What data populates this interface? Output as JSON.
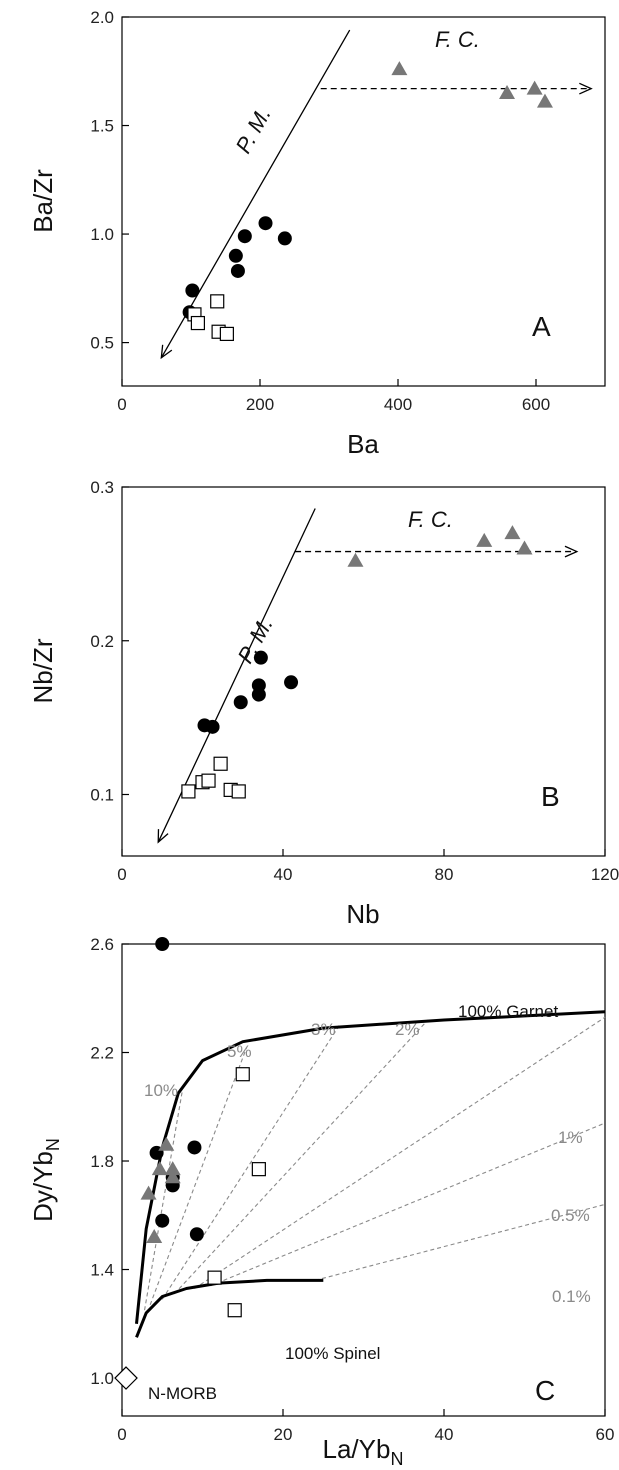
{
  "chart_data": [
    {
      "type": "scatter",
      "panel_label": "A",
      "xlabel": "Ba",
      "ylabel": "Ba/Zr",
      "xlim": [
        0,
        700
      ],
      "ylim": [
        0.3,
        2.0
      ],
      "xticks": [
        "0",
        "200",
        "400",
        "600"
      ],
      "xtick_values": [
        0,
        200,
        400,
        600
      ],
      "yticks": [
        "0.5",
        "1.0",
        "1.5",
        "2.0"
      ],
      "ytick_values": [
        0.5,
        1.0,
        1.5,
        2.0
      ],
      "grid": false,
      "series": [
        {
          "marker": "circle",
          "color": "#000000",
          "points": [
            [
              102,
              0.74
            ],
            [
              98,
              0.64
            ],
            [
              165,
              0.9
            ],
            [
              168,
              0.83
            ],
            [
              178,
              0.99
            ],
            [
              208,
              1.05
            ],
            [
              236,
              0.98
            ]
          ]
        },
        {
          "marker": "square",
          "color": "#ffffff",
          "points": [
            [
              105,
              0.63
            ],
            [
              110,
              0.59
            ],
            [
              138,
              0.69
            ],
            [
              140,
              0.55
            ],
            [
              152,
              0.54
            ]
          ]
        },
        {
          "marker": "triangle",
          "color": "#777777",
          "points": [
            [
              402,
              1.76
            ],
            [
              558,
              1.65
            ],
            [
              598,
              1.67
            ],
            [
              613,
              1.61
            ]
          ]
        }
      ],
      "annotations": [
        {
          "text": "P. M.",
          "kind": "solid-arrow-line",
          "from": [
            330,
            1.94
          ],
          "to": [
            57,
            0.43
          ],
          "label_at": [
            222,
            1.49
          ]
        },
        {
          "text": "F. C.",
          "kind": "dashed-arrow-line",
          "from": [
            288,
            1.67
          ],
          "to": [
            680,
            1.67
          ],
          "label_at": [
            440,
            1.75
          ]
        }
      ]
    },
    {
      "type": "scatter",
      "panel_label": "B",
      "xlabel": "Nb",
      "ylabel": "Nb/Zr",
      "xlim": [
        0,
        120
      ],
      "ylim": [
        0.06,
        0.3
      ],
      "xticks": [
        "0",
        "40",
        "80",
        "120"
      ],
      "xtick_values": [
        0,
        40,
        80,
        120
      ],
      "yticks": [
        "0.1",
        "0.2",
        "0.3"
      ],
      "ytick_values": [
        0.1,
        0.2,
        0.3
      ],
      "grid": false,
      "series": [
        {
          "marker": "circle",
          "color": "#000000",
          "points": [
            [
              20.5,
              0.145
            ],
            [
              22.5,
              0.144
            ],
            [
              29.5,
              0.16
            ],
            [
              34,
              0.165
            ],
            [
              34,
              0.171
            ],
            [
              34.5,
              0.189
            ],
            [
              42,
              0.173
            ]
          ]
        },
        {
          "marker": "square",
          "color": "#ffffff",
          "points": [
            [
              16.5,
              0.102
            ],
            [
              20,
              0.108
            ],
            [
              21.5,
              0.109
            ],
            [
              24.5,
              0.12
            ],
            [
              27,
              0.103
            ],
            [
              29,
              0.102
            ]
          ]
        },
        {
          "marker": "triangle",
          "color": "#777777",
          "points": [
            [
              58,
              0.252
            ],
            [
              90,
              0.265
            ],
            [
              97,
              0.27
            ],
            [
              100,
              0.26
            ]
          ]
        }
      ],
      "annotations": [
        {
          "text": "P. M.",
          "kind": "solid-arrow-line",
          "from": [
            48,
            0.286
          ],
          "to": [
            9,
            0.069
          ],
          "label_at": [
            32,
            0.215
          ]
        },
        {
          "text": "F. C.",
          "kind": "dashed-arrow-line",
          "from": [
            43,
            0.258
          ],
          "to": [
            113,
            0.258
          ],
          "label_at": [
            70,
            0.265
          ]
        }
      ]
    },
    {
      "type": "scatter",
      "panel_label": "C",
      "xlabel_main": "La/Yb",
      "xlabel_sub": "N",
      "ylabel_main": "Dy/Yb",
      "ylabel_sub": "N",
      "xlim": [
        0,
        60
      ],
      "ylim": [
        0.86,
        2.6
      ],
      "xticks": [
        "0",
        "20",
        "40",
        "60"
      ],
      "xtick_values": [
        0,
        20,
        40,
        60
      ],
      "yticks": [
        "1.0",
        "1.4",
        "1.8",
        "2.2",
        "2.6"
      ],
      "ytick_values": [
        1.0,
        1.4,
        1.8,
        2.2,
        2.6
      ],
      "grid": false,
      "series": [
        {
          "marker": "circle",
          "color": "#000000",
          "points": [
            [
              5,
              2.6
            ],
            [
              4.3,
              1.83
            ],
            [
              5,
              1.58
            ],
            [
              6.3,
              1.71
            ],
            [
              6.3,
              1.74
            ],
            [
              9,
              1.85
            ],
            [
              9.3,
              1.53
            ]
          ]
        },
        {
          "marker": "square",
          "color": "#ffffff",
          "points": [
            [
              15,
              2.12
            ],
            [
              17,
              1.77
            ],
            [
              11.5,
              1.37
            ],
            [
              14,
              1.25
            ]
          ]
        },
        {
          "marker": "triangle",
          "color": "#777777",
          "points": [
            [
              5.5,
              1.86
            ],
            [
              4.7,
              1.77
            ],
            [
              6.3,
              1.77
            ],
            [
              3.3,
              1.68
            ],
            [
              6.3,
              1.74
            ],
            [
              4,
              1.52
            ]
          ]
        },
        {
          "marker": "diamond",
          "color": "#ffffff",
          "points": [
            [
              0.5,
              1.0
            ]
          ]
        }
      ],
      "curves": [
        {
          "name": "100% Garnet",
          "points": [
            [
              1.8,
              1.2
            ],
            [
              3,
              1.55
            ],
            [
              5,
              1.85
            ],
            [
              7,
              2.05
            ],
            [
              10,
              2.17
            ],
            [
              15,
              2.24
            ],
            [
              25,
              2.29
            ],
            [
              40,
              2.32
            ],
            [
              60,
              2.35
            ]
          ]
        },
        {
          "name": "100% Spinel",
          "points": [
            [
              1.8,
              1.15
            ],
            [
              3,
              1.24
            ],
            [
              5,
              1.3
            ],
            [
              8,
              1.33
            ],
            [
              12,
              1.35
            ],
            [
              18,
              1.36
            ],
            [
              25,
              1.36
            ]
          ]
        }
      ],
      "melt_lines": [
        {
          "label": "10%",
          "from": [
            2.8,
            1.25
          ],
          "to": [
            7.5,
            2.06
          ]
        },
        {
          "label": "5%",
          "from": [
            3.5,
            1.27
          ],
          "to": [
            15.5,
            2.22
          ]
        },
        {
          "label": "3%",
          "from": [
            5,
            1.29
          ],
          "to": [
            27,
            2.3
          ]
        },
        {
          "label": "2%",
          "from": [
            6.5,
            1.31
          ],
          "to": [
            38,
            2.32
          ]
        },
        {
          "label": "1%",
          "from": [
            9,
            1.33
          ],
          "to": [
            60,
            2.33
          ]
        },
        {
          "label": "0.5%",
          "from": [
            11,
            1.34
          ],
          "to": [
            60,
            1.94
          ]
        },
        {
          "label": "0.1%",
          "from": [
            24,
            1.36
          ],
          "to": [
            60,
            1.64
          ]
        }
      ],
      "annotations": [
        {
          "text": "100% Garnet",
          "at": [
            40,
            2.4
          ]
        },
        {
          "text": "100% Spinel",
          "at": [
            22,
            1.26
          ]
        },
        {
          "text": "N-MORB",
          "at": [
            2,
            1.0
          ]
        }
      ]
    }
  ]
}
